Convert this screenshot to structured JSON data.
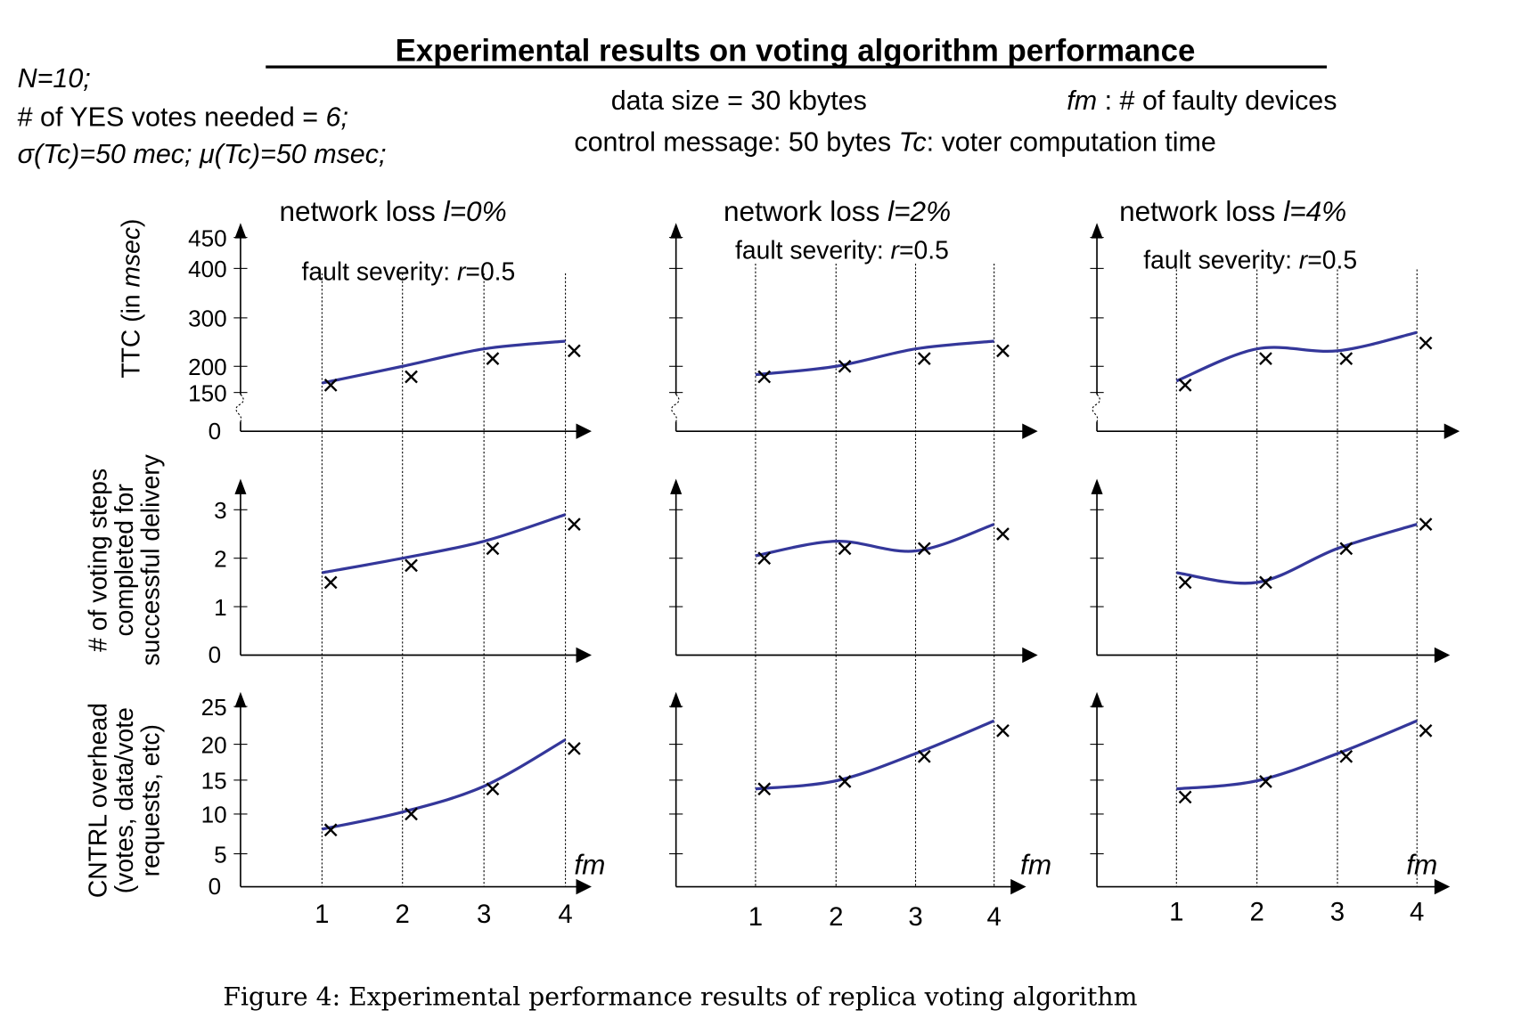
{
  "header": {
    "title": "Experimental results on voting algorithm performance",
    "left": {
      "line1": "N=10;",
      "line2_text": "# of YES votes needed = ",
      "line2_val": "6;",
      "line3": "σ(Tc)=50 mec; μ(Tc)=50 msec;"
    },
    "data_size": "data size = 30 kbytes",
    "fm_var": "fm",
    "fm_desc": " :  # of faulty devices",
    "control_text": "control message: 50 bytes ",
    "tc_var": "Tc",
    "tc_desc": ": voter computation time"
  },
  "caption": "Figure 4: Experimental performance results of replica voting algorithm",
  "colors": {
    "curve": "#34379a",
    "marker": "#000000",
    "axis": "#000000"
  },
  "columns": [
    {
      "title": "network loss",
      "title_var": "l=0%",
      "fault_text": "fault severity: ",
      "fault_var": "r",
      "fault_val": "=0.5"
    },
    {
      "title": "network loss",
      "title_var": "l=2%",
      "fault_text": "fault severity: ",
      "fault_var": "r",
      "fault_val": "=0.5"
    },
    {
      "title": "network loss",
      "title_var": "l=4%",
      "fault_text": "fault severity: ",
      "fault_var": "r",
      "fault_val": "=0.5"
    }
  ],
  "rows": [
    {
      "ylabel_lines": [
        "TTC  (in msec)"
      ],
      "ticks": [
        0,
        150,
        200,
        300,
        400,
        450
      ],
      "tick_labels": [
        "0",
        "150",
        "200",
        "300",
        "400",
        "450"
      ],
      "axis_break": true
    },
    {
      "ylabel_lines": [
        "# of voting steps",
        "completed for",
        "successful delivery"
      ],
      "ticks": [
        0,
        1,
        2,
        3
      ],
      "tick_labels": [
        "0",
        "1",
        "2",
        "3"
      ],
      "axis_break": false
    },
    {
      "ylabel_lines": [
        "CNTRL overhead",
        "(votes, data/vote",
        "requests, etc)"
      ],
      "ticks": [
        0,
        5,
        10,
        15,
        20,
        25
      ],
      "tick_labels": [
        "0",
        "5",
        "10",
        "15",
        "20",
        "25"
      ],
      "axis_break": false
    }
  ],
  "xaxis": {
    "label": "fm",
    "tick_labels": [
      "1",
      "2",
      "3",
      "4"
    ]
  },
  "chart_data": [
    {
      "type": "line",
      "row": "TTC",
      "column": "l=0%",
      "x": [
        1,
        2,
        3,
        4
      ],
      "curve": [
        168,
        200,
        236,
        252
      ],
      "markers": [
        164,
        180,
        216,
        232
      ],
      "ylim": [
        0,
        450
      ],
      "grid": "vertical dotted at x"
    },
    {
      "type": "line",
      "row": "TTC",
      "column": "l=2%",
      "x": [
        1,
        2,
        3,
        4
      ],
      "curve": [
        184,
        200,
        236,
        252
      ],
      "markers": [
        180,
        200,
        216,
        232
      ],
      "ylim": [
        0,
        450
      ]
    },
    {
      "type": "line",
      "row": "TTC",
      "column": "l=4%",
      "x": [
        1,
        2,
        3,
        4
      ],
      "curve": [
        172,
        236,
        232,
        270
      ],
      "markers": [
        164,
        216,
        216,
        248
      ],
      "ylim": [
        0,
        450
      ]
    },
    {
      "type": "line",
      "row": "voting steps",
      "column": "l=0%",
      "x": [
        1,
        2,
        3,
        4
      ],
      "curve": [
        1.7,
        2.0,
        2.35,
        2.9
      ],
      "markers": [
        1.5,
        1.85,
        2.2,
        2.7
      ],
      "ylim": [
        0,
        3.5
      ]
    },
    {
      "type": "line",
      "row": "voting steps",
      "column": "l=2%",
      "x": [
        1,
        2,
        3,
        4
      ],
      "curve": [
        2.05,
        2.35,
        2.15,
        2.7
      ],
      "markers": [
        2.0,
        2.2,
        2.2,
        2.5
      ],
      "ylim": [
        0,
        3.5
      ]
    },
    {
      "type": "line",
      "row": "voting steps",
      "column": "l=4%",
      "x": [
        1,
        2,
        3,
        4
      ],
      "curve": [
        1.7,
        1.5,
        2.2,
        2.7
      ],
      "markers": [
        1.5,
        1.5,
        2.2,
        2.7
      ],
      "ylim": [
        0,
        3.5
      ]
    },
    {
      "type": "line",
      "row": "CNTRL overhead",
      "column": "l=0%",
      "x": [
        1,
        2,
        3,
        4
      ],
      "curve": [
        8.1,
        10.3,
        14.1,
        20.6
      ],
      "markers": [
        8,
        10,
        13.7,
        19.4
      ],
      "ylim": [
        0,
        27
      ]
    },
    {
      "type": "line",
      "row": "CNTRL overhead",
      "column": "l=2%",
      "x": [
        1,
        2,
        3,
        4
      ],
      "curve": [
        13.7,
        14.9,
        18.7,
        23.1
      ],
      "markers": [
        13.7,
        14.8,
        18.3,
        21.8
      ],
      "ylim": [
        0,
        27
      ]
    },
    {
      "type": "line",
      "row": "CNTRL overhead",
      "column": "l=4%",
      "x": [
        1,
        2,
        3,
        4
      ],
      "curve": [
        13.7,
        14.9,
        18.7,
        23.1
      ],
      "markers": [
        12.5,
        14.8,
        18.3,
        21.8
      ],
      "ylim": [
        0,
        27
      ]
    }
  ]
}
